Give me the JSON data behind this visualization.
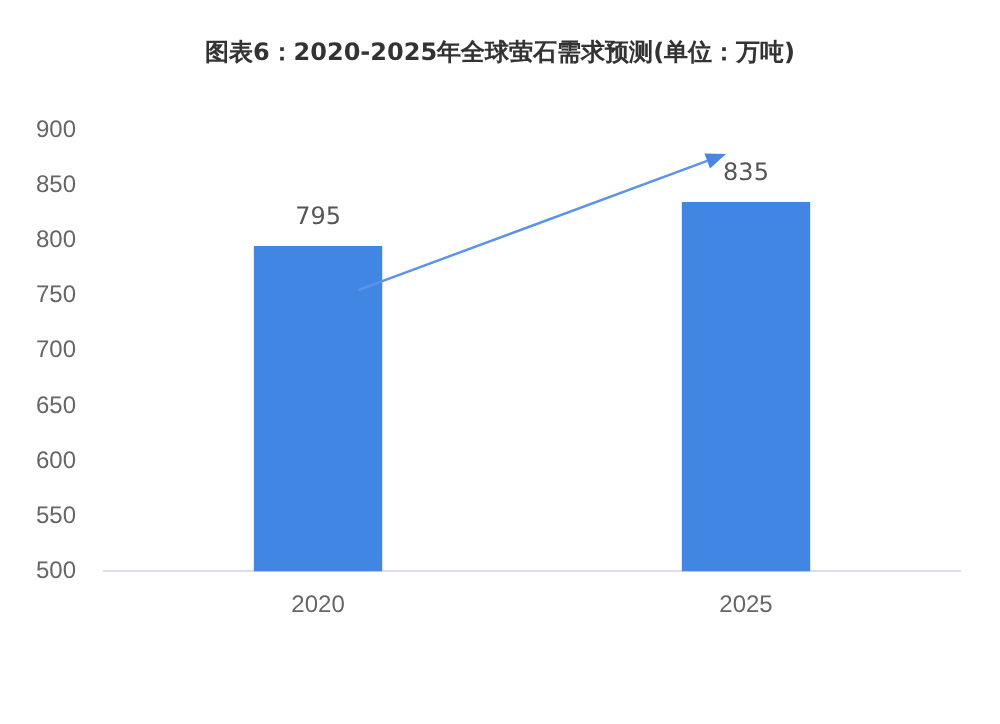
{
  "chart_data": {
    "type": "bar",
    "title": "图表6：2020-2025年全球萤石需求预测(单位：万吨)",
    "categories": [
      "2020",
      "2025"
    ],
    "values": [
      795,
      835
    ],
    "color": "#4286e3",
    "ylim": [
      500,
      900
    ],
    "yticks": [
      500,
      550,
      600,
      650,
      700,
      750,
      800,
      850,
      900
    ],
    "grid": false,
    "data_labels": true
  }
}
